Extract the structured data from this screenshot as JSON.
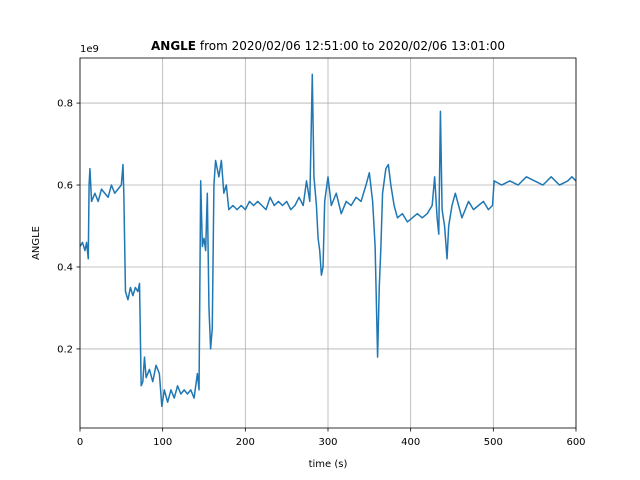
{
  "chart_data": {
    "type": "line",
    "title_bold": "ANGLE",
    "title_rest": "from 2020/02/06 12:51:00 to 2020/02/06 13:01:00",
    "y_offset_label": "1e9",
    "xlabel": "time (s)",
    "ylabel": "ANGLE",
    "xlim": [
      0,
      600
    ],
    "ylim": [
      0.007,
      0.91
    ],
    "xticks": [
      0,
      100,
      200,
      300,
      400,
      500,
      600
    ],
    "yticks": [
      0.2,
      0.4,
      0.6,
      0.8
    ],
    "grid": true,
    "color": "#1f77b4",
    "x": [
      0,
      3,
      6,
      8,
      10,
      11,
      12,
      14,
      18,
      22,
      26,
      30,
      34,
      38,
      42,
      46,
      50,
      52,
      53,
      55,
      58,
      61,
      64,
      67,
      70,
      72,
      74,
      76,
      78,
      80,
      84,
      88,
      92,
      96,
      99,
      102,
      106,
      110,
      114,
      118,
      122,
      126,
      130,
      134,
      138,
      142,
      144,
      146,
      148,
      150,
      152,
      154,
      156,
      158,
      160,
      162,
      164,
      168,
      171,
      174,
      177,
      180,
      185,
      190,
      195,
      200,
      205,
      210,
      215,
      220,
      225,
      230,
      235,
      240,
      245,
      250,
      255,
      260,
      265,
      270,
      274,
      278,
      281,
      283,
      286,
      288,
      290,
      292,
      294,
      296,
      300,
      304,
      310,
      316,
      322,
      328,
      334,
      340,
      346,
      350,
      354,
      357,
      360,
      362,
      364,
      366,
      370,
      373,
      376,
      380,
      384,
      390,
      396,
      402,
      408,
      414,
      420,
      426,
      429,
      432,
      434,
      436,
      438,
      441,
      444,
      446,
      450,
      454,
      458,
      462,
      466,
      470,
      476,
      482,
      488,
      494,
      499,
      501,
      510,
      520,
      530,
      540,
      550,
      560,
      570,
      575,
      580,
      590,
      595,
      600
    ],
    "values": [
      0.45,
      0.46,
      0.44,
      0.46,
      0.42,
      0.6,
      0.64,
      0.56,
      0.58,
      0.56,
      0.59,
      0.58,
      0.57,
      0.6,
      0.58,
      0.59,
      0.6,
      0.65,
      0.58,
      0.34,
      0.32,
      0.35,
      0.33,
      0.35,
      0.34,
      0.36,
      0.11,
      0.12,
      0.18,
      0.13,
      0.15,
      0.12,
      0.16,
      0.14,
      0.06,
      0.1,
      0.07,
      0.1,
      0.08,
      0.11,
      0.09,
      0.1,
      0.09,
      0.1,
      0.08,
      0.14,
      0.1,
      0.61,
      0.45,
      0.47,
      0.44,
      0.58,
      0.3,
      0.2,
      0.25,
      0.6,
      0.66,
      0.62,
      0.66,
      0.58,
      0.6,
      0.54,
      0.55,
      0.54,
      0.55,
      0.54,
      0.56,
      0.55,
      0.56,
      0.55,
      0.54,
      0.57,
      0.55,
      0.56,
      0.55,
      0.56,
      0.54,
      0.55,
      0.57,
      0.55,
      0.61,
      0.56,
      0.87,
      0.62,
      0.55,
      0.47,
      0.44,
      0.38,
      0.4,
      0.56,
      0.62,
      0.55,
      0.58,
      0.53,
      0.56,
      0.55,
      0.57,
      0.56,
      0.6,
      0.63,
      0.56,
      0.45,
      0.18,
      0.35,
      0.45,
      0.58,
      0.64,
      0.65,
      0.6,
      0.55,
      0.52,
      0.53,
      0.51,
      0.52,
      0.53,
      0.52,
      0.53,
      0.55,
      0.62,
      0.52,
      0.48,
      0.78,
      0.54,
      0.5,
      0.42,
      0.5,
      0.55,
      0.58,
      0.55,
      0.52,
      0.54,
      0.56,
      0.54,
      0.55,
      0.56,
      0.54,
      0.55,
      0.61,
      0.6,
      0.61,
      0.6,
      0.62,
      0.61,
      0.6,
      0.62,
      0.61,
      0.6,
      0.61,
      0.62,
      0.61
    ]
  }
}
